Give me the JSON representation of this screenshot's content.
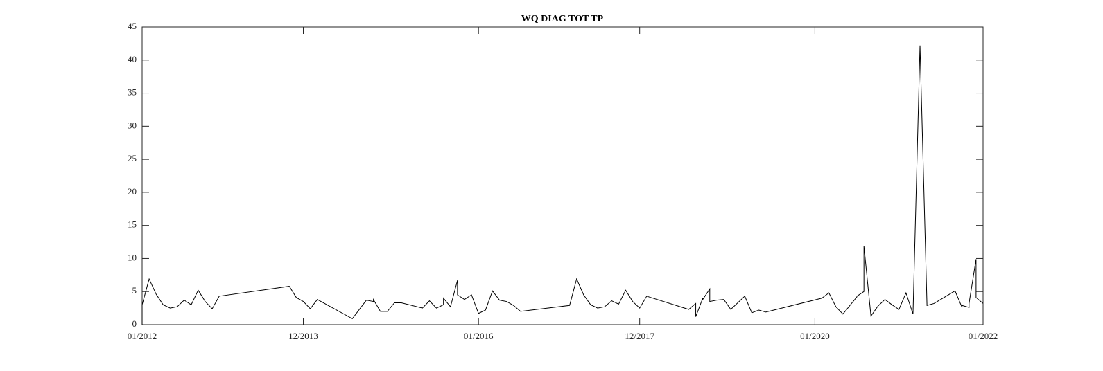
{
  "chart_data": {
    "type": "line",
    "title": "WQ DIAG TOT TP",
    "x": [
      "2012-01",
      "2012-01",
      "2012-02",
      "2012-03",
      "2012-04",
      "2012-05",
      "2012-06",
      "2012-07",
      "2012-08",
      "2012-09",
      "2012-10",
      "2012-11",
      "2012-12",
      "2013-10",
      "2013-11",
      "2013-12",
      "2014-01",
      "2014-02",
      "2014-07",
      "2014-09",
      "2014-10",
      "2014-10",
      "2014-11",
      "2014-12",
      "2015-01",
      "2015-02",
      "2015-05",
      "2015-06",
      "2015-07",
      "2015-08",
      "2015-08",
      "2015-09",
      "2015-09",
      "2015-10",
      "2015-10",
      "2015-11",
      "2015-12",
      "2016-01",
      "2016-02",
      "2016-03",
      "2016-04",
      "2016-05",
      "2016-06",
      "2016-07",
      "2017-02",
      "2017-03",
      "2017-04",
      "2017-05",
      "2017-06",
      "2017-07",
      "2017-08",
      "2017-09",
      "2017-10",
      "2017-11",
      "2017-12",
      "2018-01",
      "2018-07",
      "2018-08",
      "2018-08",
      "2018-09",
      "2018-09",
      "2018-10",
      "2018-10",
      "2018-11",
      "2018-12",
      "2019-01",
      "2019-03",
      "2019-04",
      "2019-05",
      "2019-06",
      "2020-02",
      "2020-03",
      "2020-04",
      "2020-05",
      "2020-06",
      "2020-07",
      "2020-07",
      "2020-08",
      "2020-08",
      "2020-09",
      "2020-10",
      "2020-11",
      "2020-12",
      "2021-01",
      "2021-02",
      "2021-03",
      "2021-04",
      "2021-05",
      "2021-06",
      "2021-09",
      "2021-10",
      "2021-10",
      "2021-11",
      "2021-11",
      "2021-12",
      "2021-12",
      "2022-01"
    ],
    "series": [
      {
        "color": "#000000",
        "values": [
          0,
          3.0,
          6.9,
          4.6,
          3.0,
          2.5,
          2.7,
          3.7,
          3.0,
          5.2,
          3.5,
          2.4,
          4.3,
          5.8,
          4.1,
          3.5,
          2.4,
          3.8,
          0.9,
          3.7,
          3.5,
          3.8,
          2.0,
          2.0,
          3.3,
          3.3,
          2.5,
          3.6,
          2.5,
          3.0,
          4.0,
          2.7,
          2.7,
          6.7,
          4.5,
          3.8,
          4.5,
          1.7,
          2.2,
          5.1,
          3.7,
          3.5,
          2.9,
          2.0,
          2.9,
          6.9,
          4.5,
          3.0,
          2.5,
          2.7,
          3.6,
          3.1,
          5.2,
          3.5,
          2.5,
          4.3,
          2.3,
          3.2,
          1.2,
          4.0,
          3.8,
          5.4,
          3.5,
          3.7,
          3.8,
          2.3,
          4.3,
          1.8,
          2.2,
          1.9,
          4.0,
          4.8,
          2.7,
          1.6,
          2.9,
          4.2,
          4.3,
          5.0,
          11.9,
          1.3,
          2.8,
          3.8,
          3.0,
          2.3,
          4.8,
          1.6,
          42.2,
          2.9,
          3.2,
          5.1,
          2.6,
          2.9,
          2.6,
          3.2,
          9.9,
          4.1,
          3.2
        ]
      }
    ],
    "xlim": [
      "2012-01",
      "2022-01"
    ],
    "xticks": [
      {
        "value": "2012-01",
        "label": "01/2012"
      },
      {
        "value": "2013-12",
        "label": "12/2013"
      },
      {
        "value": "2016-01",
        "label": "01/2016"
      },
      {
        "value": "2017-12",
        "label": "12/2017"
      },
      {
        "value": "2020-01",
        "label": "01/2020"
      },
      {
        "value": "2022-01",
        "label": "01/2022"
      }
    ],
    "ylim": [
      0,
      45
    ],
    "yticks": [
      0,
      5,
      10,
      15,
      20,
      25,
      30,
      35,
      40,
      45
    ],
    "grid": false
  }
}
